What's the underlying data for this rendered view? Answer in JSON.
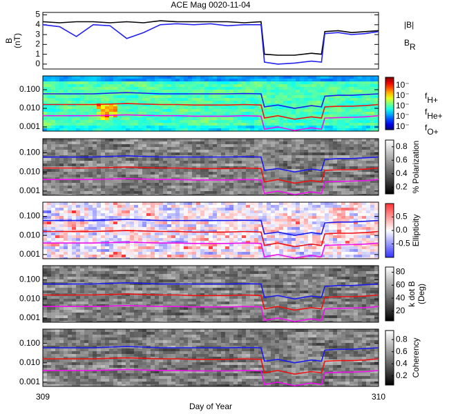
{
  "chart_data": [
    {
      "type": "line",
      "title": "ACE Mag 0020-11-04",
      "ylabel": [
        "B",
        "(nT)"
      ],
      "x": [
        309.0,
        309.05,
        309.1,
        309.15,
        309.2,
        309.25,
        309.3,
        309.35,
        309.4,
        309.45,
        309.5,
        309.55,
        309.6,
        309.65,
        309.66,
        309.7,
        309.75,
        309.8,
        309.83,
        309.84,
        309.88,
        309.92,
        309.96,
        310.0
      ],
      "xlim": [
        309,
        310
      ],
      "xticks": [
        309,
        310
      ],
      "ylim": [
        -0.5,
        5.25
      ],
      "yticks": [
        0,
        1,
        2,
        3,
        4,
        5
      ],
      "legend": true,
      "series": [
        {
          "name": "|B|",
          "color": "#000000",
          "values": [
            4.3,
            4.2,
            4.3,
            4.3,
            4.2,
            4.3,
            4.2,
            4.4,
            4.3,
            4.3,
            4.3,
            4.3,
            4.2,
            4.3,
            1.0,
            0.9,
            0.9,
            1.1,
            1.0,
            3.3,
            3.4,
            3.2,
            3.3,
            3.4
          ]
        },
        {
          "name": "B",
          "subscript": "R",
          "color": "#2222ee",
          "values": [
            4.0,
            3.8,
            2.8,
            4.0,
            3.9,
            2.6,
            3.2,
            4.0,
            4.1,
            4.0,
            4.1,
            3.9,
            4.0,
            4.0,
            0.2,
            0.0,
            0.1,
            0.3,
            0.2,
            3.1,
            3.2,
            3.0,
            3.1,
            3.3
          ]
        }
      ]
    },
    {
      "type": "spectrogram",
      "colormap": "jet",
      "ylog": true,
      "x": [
        309.0,
        309.05,
        309.1,
        309.15,
        309.2,
        309.25,
        309.3,
        309.35,
        309.4,
        309.45,
        309.5,
        309.55,
        309.6,
        309.65,
        309.66,
        309.7,
        309.75,
        309.8,
        309.83,
        309.84,
        309.88,
        309.92,
        309.96,
        310.0
      ],
      "xlim": [
        309,
        310
      ],
      "xticks": [
        309,
        310
      ],
      "ylim": [
        0.0006,
        0.55
      ],
      "yticks": [
        {
          "value": 0.1,
          "label": "0.100"
        },
        {
          "value": 0.01,
          "label": "0.010"
        },
        {
          "value": 0.001,
          "label": "0.001"
        }
      ],
      "legend": true,
      "colorbar": {
        "tick_labels": [
          "10⁻",
          "10⁻",
          "10⁻",
          "10⁻",
          "10⁻"
        ]
      },
      "series": [
        {
          "name": "f",
          "subscript": "H+",
          "color": "#1a1aee",
          "values": [
            0.06,
            0.06,
            0.06,
            0.06,
            0.065,
            0.07,
            0.065,
            0.06,
            0.06,
            0.06,
            0.06,
            0.06,
            0.062,
            0.06,
            0.012,
            0.015,
            0.01,
            0.014,
            0.012,
            0.045,
            0.05,
            0.05,
            0.055,
            0.06
          ]
        },
        {
          "name": "f",
          "subscript": "He+",
          "color": "#ee1111",
          "values": [
            0.016,
            0.016,
            0.016,
            0.016,
            0.017,
            0.018,
            0.017,
            0.016,
            0.016,
            0.015,
            0.015,
            0.015,
            0.016,
            0.015,
            0.003,
            0.004,
            0.0026,
            0.0035,
            0.003,
            0.012,
            0.013,
            0.013,
            0.014,
            0.016
          ]
        },
        {
          "name": "f",
          "subscript": "O+",
          "color": "#ee11ee",
          "values": [
            0.004,
            0.004,
            0.004,
            0.004,
            0.0042,
            0.0045,
            0.0042,
            0.004,
            0.004,
            0.0038,
            0.0038,
            0.0038,
            0.004,
            0.0038,
            0.00075,
            0.001,
            0.00065,
            0.0009,
            0.00075,
            0.003,
            0.0032,
            0.0033,
            0.0035,
            0.004
          ]
        }
      ]
    },
    {
      "type": "spectrogram",
      "colormap": "gray",
      "ylog": true,
      "x": [
        309.0,
        309.05,
        309.1,
        309.15,
        309.2,
        309.25,
        309.3,
        309.35,
        309.4,
        309.45,
        309.5,
        309.55,
        309.6,
        309.65,
        309.66,
        309.7,
        309.75,
        309.8,
        309.83,
        309.84,
        309.88,
        309.92,
        309.96,
        310.0
      ],
      "xlim": [
        309,
        310
      ],
      "xticks": [
        309,
        310
      ],
      "ylim": [
        0.0006,
        0.55
      ],
      "yticks": [
        {
          "value": 0.1,
          "label": "0.100"
        },
        {
          "value": 0.01,
          "label": "0.010"
        },
        {
          "value": 0.001,
          "label": "0.001"
        }
      ],
      "colorbar": {
        "label": [
          "% Polarization"
        ],
        "lim": [
          0.1,
          0.9
        ],
        "ticks": [
          0.2,
          0.4,
          0.6,
          0.8
        ]
      },
      "series": [
        {
          "color": "#1a1aee",
          "values": [
            0.06,
            0.06,
            0.06,
            0.06,
            0.065,
            0.07,
            0.065,
            0.06,
            0.06,
            0.06,
            0.06,
            0.06,
            0.062,
            0.06,
            0.012,
            0.015,
            0.01,
            0.014,
            0.012,
            0.045,
            0.05,
            0.05,
            0.055,
            0.06
          ]
        },
        {
          "color": "#ee1111",
          "values": [
            0.016,
            0.016,
            0.016,
            0.016,
            0.017,
            0.018,
            0.017,
            0.016,
            0.016,
            0.015,
            0.015,
            0.015,
            0.016,
            0.015,
            0.003,
            0.004,
            0.0026,
            0.0035,
            0.003,
            0.012,
            0.013,
            0.013,
            0.014,
            0.016
          ]
        },
        {
          "color": "#ee11ee",
          "values": [
            0.004,
            0.004,
            0.004,
            0.004,
            0.0042,
            0.0045,
            0.0042,
            0.004,
            0.004,
            0.0038,
            0.0038,
            0.0038,
            0.004,
            0.0038,
            0.00075,
            0.001,
            0.00065,
            0.0009,
            0.00075,
            0.003,
            0.0032,
            0.0033,
            0.0035,
            0.004
          ]
        }
      ]
    },
    {
      "type": "spectrogram",
      "colormap": "bwr",
      "ylog": true,
      "x": [
        309.0,
        309.05,
        309.1,
        309.15,
        309.2,
        309.25,
        309.3,
        309.35,
        309.4,
        309.45,
        309.5,
        309.55,
        309.6,
        309.65,
        309.66,
        309.7,
        309.75,
        309.8,
        309.83,
        309.84,
        309.88,
        309.92,
        309.96,
        310.0
      ],
      "xlim": [
        309,
        310
      ],
      "xticks": [
        309,
        310
      ],
      "ylim": [
        0.0006,
        0.55
      ],
      "yticks": [
        {
          "value": 0.1,
          "label": "0.100"
        },
        {
          "value": 0.01,
          "label": "0.010"
        },
        {
          "value": 0.001,
          "label": "0.001"
        }
      ],
      "colorbar": {
        "label": [
          "Ellipticity"
        ],
        "lim": [
          -1,
          1
        ],
        "ticks": [
          -0.5,
          {
            "value": 0,
            "label": "0.0"
          },
          0.5
        ]
      },
      "series": [
        {
          "color": "#1a1aee",
          "values": [
            0.06,
            0.06,
            0.06,
            0.06,
            0.065,
            0.07,
            0.065,
            0.06,
            0.06,
            0.06,
            0.06,
            0.06,
            0.062,
            0.06,
            0.012,
            0.015,
            0.01,
            0.014,
            0.012,
            0.045,
            0.05,
            0.05,
            0.055,
            0.06
          ]
        },
        {
          "color": "#ee1111",
          "values": [
            0.016,
            0.016,
            0.016,
            0.016,
            0.017,
            0.018,
            0.017,
            0.016,
            0.016,
            0.015,
            0.015,
            0.015,
            0.016,
            0.015,
            0.003,
            0.004,
            0.0026,
            0.0035,
            0.003,
            0.012,
            0.013,
            0.013,
            0.014,
            0.016
          ]
        },
        {
          "color": "#ee11ee",
          "values": [
            0.004,
            0.004,
            0.004,
            0.004,
            0.0042,
            0.0045,
            0.0042,
            0.004,
            0.004,
            0.0038,
            0.0038,
            0.0038,
            0.004,
            0.0038,
            0.00075,
            0.001,
            0.00065,
            0.0009,
            0.00075,
            0.003,
            0.0032,
            0.0033,
            0.0035,
            0.004
          ]
        }
      ]
    },
    {
      "type": "spectrogram",
      "colormap": "gray",
      "ylog": true,
      "x": [
        309.0,
        309.05,
        309.1,
        309.15,
        309.2,
        309.25,
        309.3,
        309.35,
        309.4,
        309.45,
        309.5,
        309.55,
        309.6,
        309.65,
        309.66,
        309.7,
        309.75,
        309.8,
        309.83,
        309.84,
        309.88,
        309.92,
        309.96,
        310.0
      ],
      "xlim": [
        309,
        310
      ],
      "xticks": [
        309,
        310
      ],
      "ylim": [
        0.0006,
        0.55
      ],
      "yticks": [
        {
          "value": 0.1,
          "label": "0.100"
        },
        {
          "value": 0.01,
          "label": "0.010"
        },
        {
          "value": 0.001,
          "label": "0.001"
        }
      ],
      "colorbar": {
        "label": [
          "k dot B",
          "(Deg)"
        ],
        "lim": [
          5,
          88
        ],
        "ticks": [
          20,
          40,
          60,
          80
        ]
      },
      "series": [
        {
          "color": "#1a1aee",
          "values": [
            0.06,
            0.06,
            0.06,
            0.06,
            0.065,
            0.07,
            0.065,
            0.06,
            0.06,
            0.06,
            0.06,
            0.06,
            0.062,
            0.06,
            0.012,
            0.015,
            0.01,
            0.014,
            0.012,
            0.045,
            0.05,
            0.05,
            0.055,
            0.06
          ]
        },
        {
          "color": "#ee1111",
          "values": [
            0.016,
            0.016,
            0.016,
            0.016,
            0.017,
            0.018,
            0.017,
            0.016,
            0.016,
            0.015,
            0.015,
            0.015,
            0.016,
            0.015,
            0.003,
            0.004,
            0.0026,
            0.0035,
            0.003,
            0.012,
            0.013,
            0.013,
            0.014,
            0.016
          ]
        },
        {
          "color": "#ee11ee",
          "values": [
            0.004,
            0.004,
            0.004,
            0.004,
            0.0042,
            0.0045,
            0.0042,
            0.004,
            0.004,
            0.0038,
            0.0038,
            0.0038,
            0.004,
            0.0038,
            0.00075,
            0.001,
            0.00065,
            0.0009,
            0.00075,
            0.003,
            0.0032,
            0.0033,
            0.0035,
            0.004
          ]
        }
      ]
    },
    {
      "type": "spectrogram",
      "colormap": "gray",
      "ylog": true,
      "xlabel": "Day of Year",
      "show_xtick_labels": true,
      "x": [
        309.0,
        309.05,
        309.1,
        309.15,
        309.2,
        309.25,
        309.3,
        309.35,
        309.4,
        309.45,
        309.5,
        309.55,
        309.6,
        309.65,
        309.66,
        309.7,
        309.75,
        309.8,
        309.83,
        309.84,
        309.88,
        309.92,
        309.96,
        310.0
      ],
      "xlim": [
        309,
        310
      ],
      "xticks": [
        309,
        310
      ],
      "ylim": [
        0.0006,
        0.55
      ],
      "yticks": [
        {
          "value": 0.1,
          "label": "0.100"
        },
        {
          "value": 0.01,
          "label": "0.010"
        },
        {
          "value": 0.001,
          "label": "0.001"
        }
      ],
      "colorbar": {
        "label": [
          "Coherency"
        ],
        "lim": [
          0.05,
          0.95
        ],
        "ticks": [
          0.2,
          0.4,
          0.6,
          0.8
        ]
      },
      "series": [
        {
          "color": "#1a1aee",
          "values": [
            0.06,
            0.06,
            0.06,
            0.06,
            0.065,
            0.07,
            0.065,
            0.06,
            0.06,
            0.06,
            0.06,
            0.06,
            0.062,
            0.06,
            0.012,
            0.015,
            0.01,
            0.014,
            0.012,
            0.045,
            0.05,
            0.05,
            0.055,
            0.06
          ]
        },
        {
          "color": "#ee1111",
          "values": [
            0.016,
            0.016,
            0.016,
            0.016,
            0.017,
            0.018,
            0.017,
            0.016,
            0.016,
            0.015,
            0.015,
            0.015,
            0.016,
            0.015,
            0.003,
            0.004,
            0.0026,
            0.0035,
            0.003,
            0.012,
            0.013,
            0.013,
            0.014,
            0.016
          ]
        },
        {
          "color": "#ee11ee",
          "values": [
            0.004,
            0.004,
            0.004,
            0.004,
            0.0042,
            0.0045,
            0.0042,
            0.004,
            0.004,
            0.0038,
            0.0038,
            0.0038,
            0.004,
            0.0038,
            0.00075,
            0.001,
            0.00065,
            0.0009,
            0.00075,
            0.003,
            0.0032,
            0.0033,
            0.0035,
            0.004
          ]
        }
      ]
    }
  ]
}
